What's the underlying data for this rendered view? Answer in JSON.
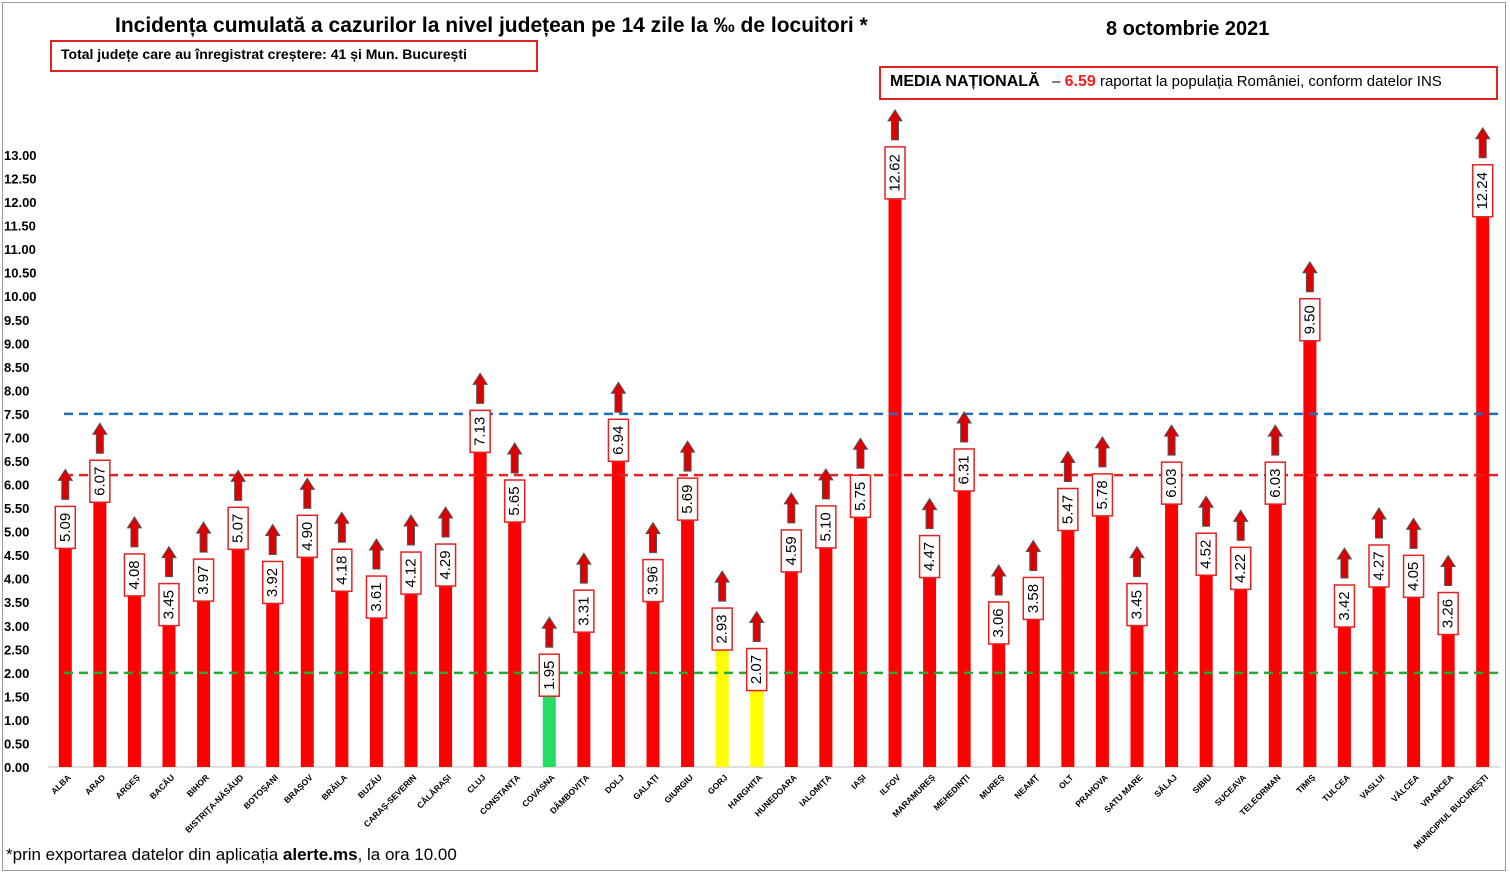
{
  "header": {
    "title": "Incidența cumulată a cazurilor la nivel județean pe 14 zile la ‰ de locuitori *",
    "date": "8 octombrie 2021"
  },
  "info_total": "Total județe care au înregistrat creștere:  41 și Mun. București",
  "media": {
    "label": "MEDIA NAȚIONALĂ",
    "dash": "–",
    "value": "6.59",
    "text": "raportat la populația României, conform datelor INS"
  },
  "footnote": {
    "prefix": "*prin exportarea datelor din aplicația ",
    "app": "alerte.ms",
    "suffix": ", la ora 10.00"
  },
  "colors": {
    "red": "#ff0000",
    "green": "#22dd66",
    "yellow": "#ffff00",
    "arrow_fill": "#dd0000",
    "arrow_stroke": "#555555",
    "label_border": "#e52222",
    "line_blue": "#1f6fc1",
    "line_red": "#e52222",
    "line_green": "#22aa33"
  },
  "chart_data": {
    "type": "bar",
    "ylim": [
      0,
      13
    ],
    "y_step": 0.5,
    "y_tick_labels": [
      "0.00",
      "0.50",
      "1.00",
      "1.50",
      "2.00",
      "2.50",
      "3.00",
      "3.50",
      "4.00",
      "4.50",
      "5.00",
      "5.50",
      "6.00",
      "6.50",
      "7.00",
      "7.50",
      "8.00",
      "8.50",
      "9.00",
      "9.50",
      "10.00",
      "10.50",
      "11.00",
      "11.50",
      "12.00",
      "12.50",
      "13.00"
    ],
    "grid": false,
    "reference_lines": [
      {
        "value": 7.5,
        "color": "blue",
        "style": "dashed"
      },
      {
        "value": 6.2,
        "color": "red",
        "style": "dashed"
      },
      {
        "value": 2.0,
        "color": "green",
        "style": "dashed"
      }
    ],
    "categories": [
      "ALBA",
      "ARAD",
      "ARGEȘ",
      "BACĂU",
      "BIHOR",
      "BISTRIȚA-NĂSĂUD",
      "BOTOȘANI",
      "BRAȘOV",
      "BRĂILA",
      "BUZĂU",
      "CARAȘ-SEVERIN",
      "CĂLĂRAȘI",
      "CLUJ",
      "CONSTANȚA",
      "COVASNA",
      "DÂMBOVIȚA",
      "DOLJ",
      "GALAȚI",
      "GIURGIU",
      "GORJ",
      "HARGHITA",
      "HUNEDOARA",
      "IALOMIȚA",
      "IAȘI",
      "ILFOV",
      "MARAMUREȘ",
      "MEHEDINȚI",
      "MUREȘ",
      "NEAMȚ",
      "OLT",
      "PRAHOVA",
      "SATU MARE",
      "SĂLAJ",
      "SIBIU",
      "SUCEAVA",
      "TELEORMAN",
      "TIMIȘ",
      "TULCEA",
      "VASLUI",
      "VÂLCEA",
      "VRANCEA",
      "MUNICIPIUL BUCUREȘTI"
    ],
    "values": [
      5.09,
      6.07,
      4.08,
      3.45,
      3.97,
      5.07,
      3.92,
      4.9,
      4.18,
      3.61,
      4.12,
      4.29,
      7.13,
      5.65,
      1.95,
      3.31,
      6.94,
      3.96,
      5.69,
      2.93,
      2.07,
      4.59,
      5.1,
      5.75,
      12.62,
      4.47,
      6.31,
      3.06,
      3.58,
      5.47,
      5.78,
      3.45,
      6.03,
      4.52,
      4.22,
      6.03,
      9.5,
      3.42,
      4.27,
      4.05,
      3.26,
      12.24
    ],
    "value_labels": [
      "5.09",
      "6.07",
      "4.08",
      "3.45",
      "3.97",
      "5.07",
      "3.92",
      "4.90",
      "4.18",
      "3.61",
      "4.12",
      "4.29",
      "7.13",
      "5.65",
      "1.95",
      "3.31",
      "6.94",
      "3.96",
      "5.69",
      "2.93",
      "2.07",
      "4.59",
      "5.10",
      "5.75",
      "12.62",
      "4.47",
      "6.31",
      "3.06",
      "3.58",
      "5.47",
      "5.78",
      "3.45",
      "6.03",
      "4.52",
      "4.22",
      "6.03",
      "9.50",
      "3.42",
      "4.27",
      "4.05",
      "3.26",
      "12.24"
    ],
    "bar_colors": [
      "red",
      "red",
      "red",
      "red",
      "red",
      "red",
      "red",
      "red",
      "red",
      "red",
      "red",
      "red",
      "red",
      "red",
      "green",
      "red",
      "red",
      "red",
      "red",
      "yellow",
      "yellow",
      "red",
      "red",
      "red",
      "red",
      "red",
      "red",
      "red",
      "red",
      "red",
      "red",
      "red",
      "red",
      "red",
      "red",
      "red",
      "red",
      "red",
      "red",
      "red",
      "red",
      "red"
    ],
    "trend_up": [
      true,
      true,
      true,
      true,
      true,
      true,
      true,
      true,
      true,
      true,
      true,
      true,
      true,
      true,
      true,
      true,
      true,
      true,
      true,
      true,
      true,
      true,
      true,
      true,
      true,
      true,
      true,
      true,
      true,
      true,
      true,
      true,
      true,
      true,
      true,
      true,
      true,
      true,
      true,
      true,
      true,
      true
    ]
  }
}
